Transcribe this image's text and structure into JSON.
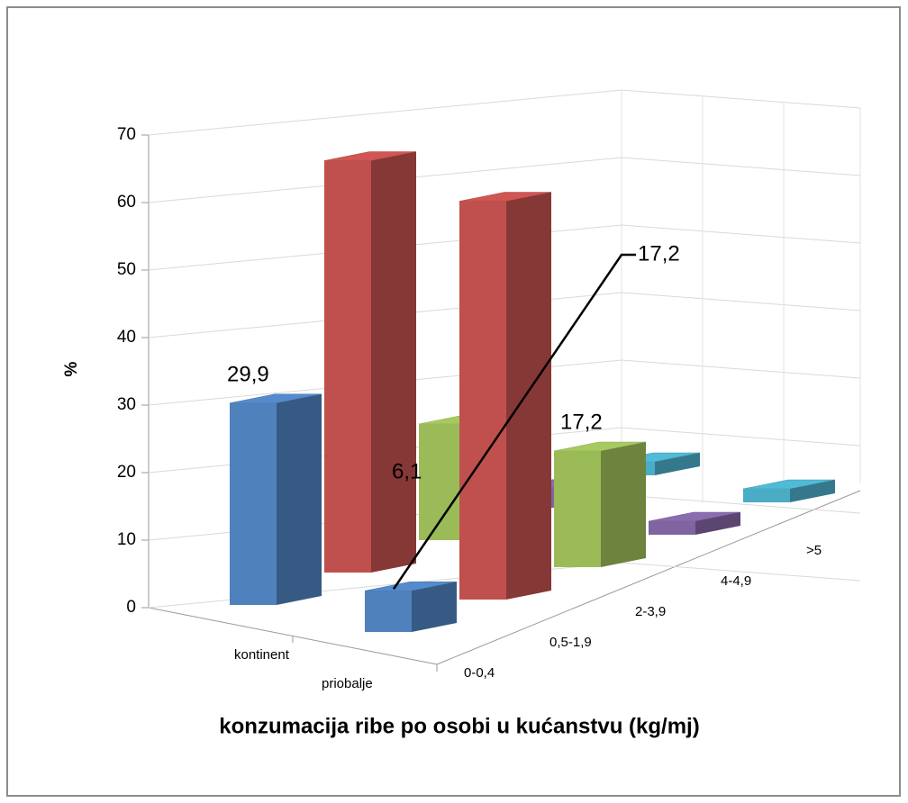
{
  "chart_data": {
    "type": "bar3d",
    "xlabel": "konzumacija ribe po osobi u kućanstvu (kg/mj)",
    "ylabel": "%",
    "categories": [
      "kontinent",
      "priobalje"
    ],
    "series": [
      {
        "name": "0-0,4",
        "color": "#4f81bd",
        "values": [
          29.9,
          6.1
        ],
        "value_labels": [
          "29,9",
          "6,1"
        ]
      },
      {
        "name": "0,5-1,9",
        "color": "#c0504d",
        "values": [
          61,
          59
        ]
      },
      {
        "name": "2-3,9",
        "color": "#9bbb59",
        "values": [
          17.2,
          17.2
        ],
        "value_labels": [
          "17,2",
          "17,2"
        ]
      },
      {
        "name": "4-4,9",
        "color": "#8064a2",
        "values": [
          3,
          2
        ]
      },
      {
        "name": ">5",
        "color": "#4bacc6",
        "values": [
          2,
          2
        ]
      }
    ],
    "ylim": [
      0,
      70
    ],
    "yticks": [
      0,
      10,
      20,
      30,
      40,
      50,
      60,
      70
    ],
    "grid": true
  }
}
